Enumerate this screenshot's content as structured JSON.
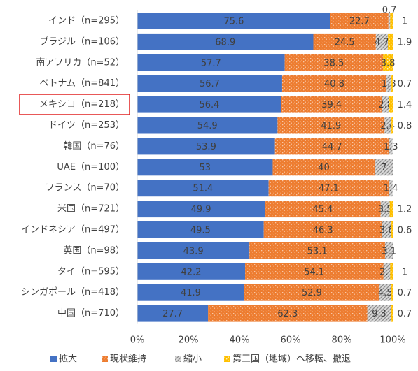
{
  "chart_data": {
    "type": "stacked-bar-horizontal",
    "categories": [
      "インド（n=295）",
      "ブラジル（n=106）",
      "南アフリカ（n=52）",
      "ベトナム（n=841）",
      "メキシコ（n=218）",
      "ドイツ（n=253）",
      "韓国（n=76）",
      "UAE（n=100）",
      "フランス（n=70）",
      "米国（n=721）",
      "インドネシア（n=497）",
      "英国（n=98）",
      "タイ（n=595）",
      "シンガポール（n=418）",
      "中国（n=710）"
    ],
    "series": [
      {
        "name": "拡大",
        "color": "#4472c4",
        "values": [
          75.6,
          68.9,
          57.7,
          56.7,
          56.4,
          54.9,
          53.9,
          53.0,
          51.4,
          49.9,
          49.5,
          43.9,
          42.2,
          41.9,
          27.7
        ]
      },
      {
        "name": "現状維持",
        "color": "#ed7d31",
        "values": [
          22.7,
          24.5,
          38.5,
          40.8,
          39.4,
          41.9,
          44.7,
          40.0,
          47.1,
          45.4,
          46.3,
          53.1,
          54.1,
          52.9,
          62.3
        ]
      },
      {
        "name": "縮小",
        "color": "#a5a5a5",
        "values": [
          0.7,
          4.7,
          null,
          1.8,
          2.8,
          2.4,
          1.3,
          7.0,
          1.4,
          3.5,
          3.6,
          3.1,
          2.7,
          4.5,
          9.3
        ]
      },
      {
        "name": "第三国（地域）へ移転、撤退",
        "color": "#ffc000",
        "values": [
          1.0,
          1.9,
          3.8,
          0.7,
          1.4,
          0.8,
          null,
          null,
          null,
          1.2,
          0.6,
          null,
          1.0,
          0.7,
          0.7
        ]
      }
    ],
    "xlim": [
      0,
      100
    ],
    "xticks": [
      {
        "value": 0,
        "label": "0%"
      },
      {
        "value": 20,
        "label": "20%"
      },
      {
        "value": 40,
        "label": "40%"
      },
      {
        "value": 60,
        "label": "60%"
      },
      {
        "value": 80,
        "label": "80%"
      },
      {
        "value": 100,
        "label": "100%"
      }
    ]
  }
}
